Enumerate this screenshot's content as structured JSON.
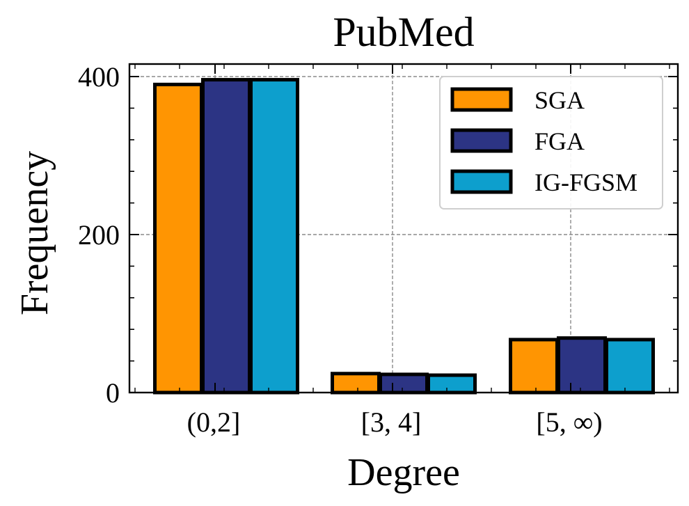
{
  "chart_data": {
    "type": "bar",
    "title": "PubMed",
    "xlabel": "Degree",
    "ylabel": "Frequency",
    "categories": [
      "(0,2]",
      "[3, 4]",
      "[5, ∞)"
    ],
    "ylim": [
      0,
      400
    ],
    "yticks": [
      0,
      200,
      400
    ],
    "grid": true,
    "legend_position": "top-right",
    "series": [
      {
        "name": "SGA",
        "values": [
          390,
          24,
          67
        ],
        "color": "#ff9502"
      },
      {
        "name": "FGA",
        "values": [
          396,
          23,
          69
        ],
        "color": "#2c3484"
      },
      {
        "name": "IG-FGSM",
        "values": [
          396,
          22,
          67
        ],
        "color": "#0d9fcd"
      }
    ]
  }
}
